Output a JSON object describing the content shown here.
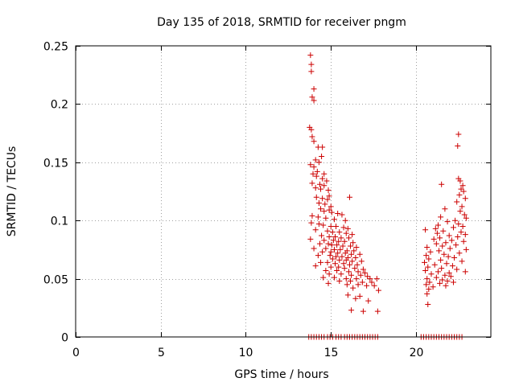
{
  "chart_data": {
    "type": "scatter",
    "title": "Day 135 of 2018, SRMTID for receiver pngm",
    "xlabel": "GPS time / hours",
    "ylabel": "SRMTID / TECUs",
    "xlim": [
      0,
      24.4
    ],
    "ylim": [
      0,
      0.25
    ],
    "xticks": [
      0,
      5,
      10,
      15,
      20
    ],
    "yticks": [
      0,
      0.05,
      0.1,
      0.15,
      0.2,
      0.25
    ],
    "xtick_labels": [
      "0",
      "5",
      "10",
      "15",
      "20"
    ],
    "ytick_labels": [
      "0",
      "0.05",
      "0.1",
      "0.15",
      "0.2",
      "0.25"
    ],
    "grid": true,
    "marker": "+",
    "color": "#cc0000",
    "series": [
      {
        "name": "SRMTID",
        "points": [
          [
            13.8,
            0.242
          ],
          [
            13.85,
            0.234
          ],
          [
            13.85,
            0.228
          ],
          [
            14.0,
            0.213
          ],
          [
            13.9,
            0.206
          ],
          [
            14.0,
            0.203
          ],
          [
            13.75,
            0.18
          ],
          [
            13.85,
            0.178
          ],
          [
            13.9,
            0.172
          ],
          [
            14.0,
            0.168
          ],
          [
            14.25,
            0.163
          ],
          [
            14.5,
            0.163
          ],
          [
            14.45,
            0.155
          ],
          [
            14.1,
            0.152
          ],
          [
            14.3,
            0.15
          ],
          [
            13.8,
            0.148
          ],
          [
            14.0,
            0.146
          ],
          [
            14.2,
            0.142
          ],
          [
            13.95,
            0.14
          ],
          [
            14.6,
            0.14
          ],
          [
            14.15,
            0.138
          ],
          [
            14.5,
            0.136
          ],
          [
            14.75,
            0.134
          ],
          [
            13.9,
            0.132
          ],
          [
            14.35,
            0.131
          ],
          [
            14.6,
            0.13
          ],
          [
            14.1,
            0.128
          ],
          [
            14.4,
            0.127
          ],
          [
            14.85,
            0.126
          ],
          [
            14.9,
            0.121
          ],
          [
            14.15,
            0.12
          ],
          [
            14.5,
            0.119
          ],
          [
            14.8,
            0.118
          ],
          [
            14.3,
            0.115
          ],
          [
            14.65,
            0.114
          ],
          [
            15.0,
            0.112
          ],
          [
            14.4,
            0.11
          ],
          [
            14.9,
            0.109
          ],
          [
            14.6,
            0.108
          ],
          [
            15.05,
            0.107
          ],
          [
            15.4,
            0.106
          ],
          [
            15.65,
            0.105
          ],
          [
            13.9,
            0.104
          ],
          [
            14.25,
            0.103
          ],
          [
            14.7,
            0.102
          ],
          [
            15.2,
            0.101
          ],
          [
            15.85,
            0.1
          ],
          [
            16.1,
            0.12
          ],
          [
            13.85,
            0.098
          ],
          [
            14.3,
            0.097
          ],
          [
            14.55,
            0.096
          ],
          [
            15.0,
            0.095
          ],
          [
            15.3,
            0.095
          ],
          [
            15.75,
            0.094
          ],
          [
            16.0,
            0.093
          ],
          [
            14.1,
            0.092
          ],
          [
            14.8,
            0.091
          ],
          [
            15.1,
            0.09
          ],
          [
            15.5,
            0.09
          ],
          [
            15.9,
            0.089
          ],
          [
            16.25,
            0.088
          ],
          [
            14.45,
            0.087
          ],
          [
            14.9,
            0.086
          ],
          [
            15.25,
            0.086
          ],
          [
            15.6,
            0.085
          ],
          [
            16.05,
            0.085
          ],
          [
            13.8,
            0.084
          ],
          [
            14.6,
            0.083
          ],
          [
            15.15,
            0.083
          ],
          [
            15.45,
            0.082
          ],
          [
            15.8,
            0.082
          ],
          [
            16.3,
            0.081
          ],
          [
            14.35,
            0.08
          ],
          [
            14.85,
            0.08
          ],
          [
            15.05,
            0.079
          ],
          [
            15.35,
            0.079
          ],
          [
            15.7,
            0.078
          ],
          [
            16.15,
            0.078
          ],
          [
            16.5,
            0.077
          ],
          [
            14.0,
            0.076
          ],
          [
            14.7,
            0.076
          ],
          [
            15.2,
            0.075
          ],
          [
            15.55,
            0.075
          ],
          [
            15.95,
            0.074
          ],
          [
            16.35,
            0.074
          ],
          [
            14.5,
            0.073
          ],
          [
            15.0,
            0.073
          ],
          [
            15.4,
            0.072
          ],
          [
            15.85,
            0.072
          ],
          [
            16.2,
            0.071
          ],
          [
            16.7,
            0.071
          ],
          [
            14.25,
            0.07
          ],
          [
            14.95,
            0.07
          ],
          [
            15.3,
            0.069
          ],
          [
            15.65,
            0.069
          ],
          [
            16.0,
            0.068
          ],
          [
            16.45,
            0.068
          ],
          [
            15.1,
            0.067
          ],
          [
            15.5,
            0.066
          ],
          [
            15.9,
            0.066
          ],
          [
            16.25,
            0.065
          ],
          [
            16.8,
            0.065
          ],
          [
            14.4,
            0.064
          ],
          [
            14.8,
            0.064
          ],
          [
            15.25,
            0.063
          ],
          [
            15.75,
            0.063
          ],
          [
            16.1,
            0.062
          ],
          [
            16.55,
            0.062
          ],
          [
            14.1,
            0.061
          ],
          [
            15.0,
            0.06
          ],
          [
            15.45,
            0.06
          ],
          [
            15.8,
            0.059
          ],
          [
            16.4,
            0.059
          ],
          [
            16.9,
            0.058
          ],
          [
            14.7,
            0.057
          ],
          [
            15.35,
            0.057
          ],
          [
            16.05,
            0.056
          ],
          [
            16.6,
            0.056
          ],
          [
            17.0,
            0.055
          ],
          [
            14.9,
            0.054
          ],
          [
            15.6,
            0.054
          ],
          [
            16.2,
            0.053
          ],
          [
            16.75,
            0.053
          ],
          [
            17.15,
            0.052
          ],
          [
            14.55,
            0.051
          ],
          [
            15.2,
            0.051
          ],
          [
            15.9,
            0.05
          ],
          [
            16.5,
            0.05
          ],
          [
            17.3,
            0.05
          ],
          [
            17.7,
            0.05
          ],
          [
            15.5,
            0.048
          ],
          [
            16.15,
            0.048
          ],
          [
            16.85,
            0.047
          ],
          [
            17.4,
            0.047
          ],
          [
            14.85,
            0.046
          ],
          [
            15.95,
            0.045
          ],
          [
            16.6,
            0.045
          ],
          [
            17.1,
            0.044
          ],
          [
            17.55,
            0.044
          ],
          [
            16.3,
            0.042
          ],
          [
            17.8,
            0.04
          ],
          [
            16.0,
            0.036
          ],
          [
            16.7,
            0.035
          ],
          [
            16.45,
            0.033
          ],
          [
            17.2,
            0.031
          ],
          [
            16.2,
            0.023
          ],
          [
            16.9,
            0.022
          ],
          [
            17.75,
            0.022
          ],
          [
            22.5,
            0.174
          ],
          [
            22.45,
            0.164
          ],
          [
            22.5,
            0.136
          ],
          [
            22.6,
            0.134
          ],
          [
            22.75,
            0.13
          ],
          [
            22.65,
            0.127
          ],
          [
            22.8,
            0.125
          ],
          [
            22.55,
            0.122
          ],
          [
            21.5,
            0.131
          ],
          [
            22.9,
            0.119
          ],
          [
            22.4,
            0.116
          ],
          [
            22.7,
            0.112
          ],
          [
            21.7,
            0.11
          ],
          [
            22.6,
            0.108
          ],
          [
            22.85,
            0.105
          ],
          [
            21.45,
            0.103
          ],
          [
            22.95,
            0.102
          ],
          [
            22.3,
            0.1
          ],
          [
            21.85,
            0.099
          ],
          [
            22.5,
            0.097
          ],
          [
            21.3,
            0.096
          ],
          [
            22.75,
            0.095
          ],
          [
            22.2,
            0.094
          ],
          [
            21.15,
            0.093
          ],
          [
            20.55,
            0.092
          ],
          [
            21.6,
            0.091
          ],
          [
            22.65,
            0.09
          ],
          [
            21.25,
            0.089
          ],
          [
            22.9,
            0.088
          ],
          [
            21.95,
            0.087
          ],
          [
            22.45,
            0.086
          ],
          [
            21.4,
            0.085
          ],
          [
            21.05,
            0.084
          ],
          [
            22.1,
            0.083
          ],
          [
            22.8,
            0.082
          ],
          [
            21.75,
            0.081
          ],
          [
            21.2,
            0.08
          ],
          [
            22.35,
            0.079
          ],
          [
            21.55,
            0.078
          ],
          [
            20.65,
            0.077
          ],
          [
            22.0,
            0.076
          ],
          [
            22.95,
            0.075
          ],
          [
            21.35,
            0.074
          ],
          [
            20.85,
            0.073
          ],
          [
            22.55,
            0.072
          ],
          [
            21.65,
            0.071
          ],
          [
            20.6,
            0.07
          ],
          [
            21.9,
            0.069
          ],
          [
            22.25,
            0.068
          ],
          [
            20.75,
            0.067
          ],
          [
            21.45,
            0.066
          ],
          [
            22.7,
            0.065
          ],
          [
            20.5,
            0.064
          ],
          [
            21.8,
            0.063
          ],
          [
            21.1,
            0.062
          ],
          [
            22.15,
            0.061
          ],
          [
            20.7,
            0.06
          ],
          [
            21.5,
            0.059
          ],
          [
            22.4,
            0.058
          ],
          [
            20.55,
            0.057
          ],
          [
            21.3,
            0.056
          ],
          [
            22.9,
            0.056
          ],
          [
            21.95,
            0.055
          ],
          [
            20.9,
            0.054
          ],
          [
            21.7,
            0.053
          ],
          [
            22.05,
            0.052
          ],
          [
            21.2,
            0.051
          ],
          [
            20.65,
            0.05
          ],
          [
            21.55,
            0.049
          ],
          [
            21.85,
            0.048
          ],
          [
            20.8,
            0.047
          ],
          [
            22.2,
            0.047
          ],
          [
            21.4,
            0.046
          ],
          [
            20.6,
            0.045
          ],
          [
            21.75,
            0.044
          ],
          [
            21.0,
            0.043
          ],
          [
            20.75,
            0.041
          ],
          [
            20.65,
            0.037
          ],
          [
            20.7,
            0.028
          ],
          [
            13.7,
            0.0
          ],
          [
            13.85,
            0.0
          ],
          [
            14.0,
            0.0
          ],
          [
            14.15,
            0.0
          ],
          [
            14.3,
            0.0
          ],
          [
            14.45,
            0.0
          ],
          [
            14.6,
            0.0
          ],
          [
            14.8,
            0.0
          ],
          [
            14.95,
            0.0
          ],
          [
            15.1,
            0.0
          ],
          [
            15.3,
            0.0
          ],
          [
            15.45,
            0.0
          ],
          [
            15.6,
            0.0
          ],
          [
            15.8,
            0.0
          ],
          [
            15.95,
            0.0
          ],
          [
            16.1,
            0.0
          ],
          [
            16.25,
            0.0
          ],
          [
            16.4,
            0.0
          ],
          [
            16.55,
            0.0
          ],
          [
            16.7,
            0.0
          ],
          [
            16.85,
            0.0
          ],
          [
            17.0,
            0.0
          ],
          [
            17.15,
            0.0
          ],
          [
            17.3,
            0.0
          ],
          [
            17.45,
            0.0
          ],
          [
            17.6,
            0.0
          ],
          [
            17.75,
            0.0
          ],
          [
            20.3,
            0.0
          ],
          [
            20.45,
            0.0
          ],
          [
            20.6,
            0.0
          ],
          [
            20.75,
            0.0
          ],
          [
            20.9,
            0.0
          ],
          [
            21.05,
            0.0
          ],
          [
            21.2,
            0.0
          ],
          [
            21.35,
            0.0
          ],
          [
            21.5,
            0.0
          ],
          [
            21.65,
            0.0
          ],
          [
            21.8,
            0.0
          ],
          [
            21.95,
            0.0
          ],
          [
            22.1,
            0.0
          ],
          [
            22.25,
            0.0
          ],
          [
            22.4,
            0.0
          ],
          [
            22.55,
            0.0
          ],
          [
            22.7,
            0.0
          ]
        ]
      }
    ]
  }
}
